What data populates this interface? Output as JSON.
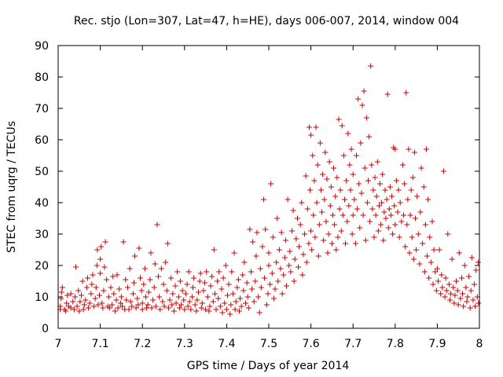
{
  "chart_data": {
    "type": "scatter",
    "title": "Rec. stjo (Lon=307, Lat=47, h=HE), days 006-007, 2014, window 004",
    "xlabel": "GPS time / Days of year 2014",
    "ylabel": "STEC from uqrg / TECUs",
    "xlim": [
      7,
      8
    ],
    "ylim": [
      0,
      90
    ],
    "xticks": [
      "7",
      "7.1",
      "7.2",
      "7.3",
      "7.4",
      "7.5",
      "7.6",
      "7.7",
      "7.8",
      "7.9",
      "8"
    ],
    "yticks": [
      "0",
      "10",
      "20",
      "30",
      "40",
      "50",
      "60",
      "70",
      "80",
      "90"
    ],
    "grid": false,
    "marker": "+",
    "color": "#cc0000",
    "points": [
      [
        7.005,
        6
      ],
      [
        7.005,
        7
      ],
      [
        7.007,
        9.5
      ],
      [
        7.008,
        11.5
      ],
      [
        7.01,
        13
      ],
      [
        7.015,
        6
      ],
      [
        7.018,
        5.5
      ],
      [
        7.02,
        8
      ],
      [
        7.022,
        10.5
      ],
      [
        7.025,
        7
      ],
      [
        7.03,
        6.5
      ],
      [
        7.03,
        11
      ],
      [
        7.035,
        8.5
      ],
      [
        7.038,
        6
      ],
      [
        7.04,
        10
      ],
      [
        7.042,
        19.5
      ],
      [
        7.045,
        7
      ],
      [
        7.048,
        12
      ],
      [
        7.05,
        5.5
      ],
      [
        7.052,
        8.5
      ],
      [
        7.055,
        10.5
      ],
      [
        7.058,
        15
      ],
      [
        7.06,
        6
      ],
      [
        7.062,
        7.5
      ],
      [
        7.065,
        9
      ],
      [
        7.068,
        13
      ],
      [
        7.07,
        16
      ],
      [
        7.072,
        6.5
      ],
      [
        7.075,
        8
      ],
      [
        7.078,
        11
      ],
      [
        7.08,
        14
      ],
      [
        7.082,
        17
      ],
      [
        7.085,
        7
      ],
      [
        7.088,
        9.5
      ],
      [
        7.09,
        13
      ],
      [
        7.092,
        20
      ],
      [
        7.093,
        25
      ],
      [
        7.095,
        7.5
      ],
      [
        7.098,
        10.5
      ],
      [
        7.1,
        17.5
      ],
      [
        7.1,
        22
      ],
      [
        7.102,
        26
      ],
      [
        7.104,
        8
      ],
      [
        7.106,
        6.5
      ],
      [
        7.108,
        12
      ],
      [
        7.11,
        19.5
      ],
      [
        7.112,
        27.5
      ],
      [
        7.115,
        15.5
      ],
      [
        7.118,
        7
      ],
      [
        7.12,
        10
      ],
      [
        7.122,
        6.5
      ],
      [
        7.125,
        13
      ],
      [
        7.128,
        7.5
      ],
      [
        7.13,
        16.5
      ],
      [
        7.132,
        11
      ],
      [
        7.135,
        5.5
      ],
      [
        7.138,
        9
      ],
      [
        7.14,
        17
      ],
      [
        7.142,
        6.5
      ],
      [
        7.145,
        12.5
      ],
      [
        7.148,
        8
      ],
      [
        7.15,
        10
      ],
      [
        7.152,
        7
      ],
      [
        7.155,
        27.5
      ],
      [
        7.158,
        6
      ],
      [
        7.16,
        15.5
      ],
      [
        7.162,
        9
      ],
      [
        7.165,
        13
      ],
      [
        7.168,
        6
      ],
      [
        7.17,
        19
      ],
      [
        7.172,
        8.5
      ],
      [
        7.175,
        7
      ],
      [
        7.178,
        11
      ],
      [
        7.18,
        14.5
      ],
      [
        7.182,
        23
      ],
      [
        7.185,
        6.5
      ],
      [
        7.188,
        9.5
      ],
      [
        7.19,
        7.5
      ],
      [
        7.192,
        25.5
      ],
      [
        7.195,
        16
      ],
      [
        7.198,
        12
      ],
      [
        7.2,
        6
      ],
      [
        7.2,
        8
      ],
      [
        7.203,
        14
      ],
      [
        7.206,
        19
      ],
      [
        7.208,
        10
      ],
      [
        7.21,
        6.5
      ],
      [
        7.213,
        7.5
      ],
      [
        7.215,
        11.5
      ],
      [
        7.218,
        15.5
      ],
      [
        7.22,
        24
      ],
      [
        7.222,
        6.5
      ],
      [
        7.225,
        9
      ],
      [
        7.228,
        13
      ],
      [
        7.23,
        20.5
      ],
      [
        7.232,
        7
      ],
      [
        7.235,
        33
      ],
      [
        7.238,
        16.5
      ],
      [
        7.24,
        10
      ],
      [
        7.242,
        6
      ],
      [
        7.245,
        19
      ],
      [
        7.248,
        8.5
      ],
      [
        7.25,
        14
      ],
      [
        7.252,
        7
      ],
      [
        7.255,
        21
      ],
      [
        7.258,
        12
      ],
      [
        7.26,
        27
      ],
      [
        7.262,
        6.5
      ],
      [
        7.265,
        9
      ],
      [
        7.268,
        16
      ],
      [
        7.27,
        7.5
      ],
      [
        7.272,
        11
      ],
      [
        7.275,
        5.5
      ],
      [
        7.278,
        13.5
      ],
      [
        7.28,
        8
      ],
      [
        7.283,
        18
      ],
      [
        7.286,
        10
      ],
      [
        7.288,
        6.5
      ],
      [
        7.29,
        15
      ],
      [
        7.292,
        7.5
      ],
      [
        7.295,
        12
      ],
      [
        7.298,
        9
      ],
      [
        7.3,
        6
      ],
      [
        7.303,
        11
      ],
      [
        7.306,
        14
      ],
      [
        7.308,
        7
      ],
      [
        7.31,
        18
      ],
      [
        7.312,
        8.5
      ],
      [
        7.315,
        6
      ],
      [
        7.318,
        10
      ],
      [
        7.32,
        13
      ],
      [
        7.322,
        16
      ],
      [
        7.325,
        7.5
      ],
      [
        7.328,
        5.5
      ],
      [
        7.33,
        9
      ],
      [
        7.333,
        11.5
      ],
      [
        7.336,
        15
      ],
      [
        7.338,
        17.5
      ],
      [
        7.34,
        6.5
      ],
      [
        7.342,
        8
      ],
      [
        7.345,
        12
      ],
      [
        7.348,
        14.5
      ],
      [
        7.35,
        6
      ],
      [
        7.352,
        18
      ],
      [
        7.355,
        10
      ],
      [
        7.358,
        5.5
      ],
      [
        7.36,
        7
      ],
      [
        7.362,
        13.5
      ],
      [
        7.365,
        16.5
      ],
      [
        7.368,
        8.5
      ],
      [
        7.37,
        25
      ],
      [
        7.372,
        11
      ],
      [
        7.375,
        6
      ],
      [
        7.378,
        15
      ],
      [
        7.38,
        9.5
      ],
      [
        7.382,
        18
      ],
      [
        7.385,
        7
      ],
      [
        7.388,
        12.5
      ],
      [
        7.39,
        5
      ],
      [
        7.392,
        16
      ],
      [
        7.395,
        8
      ],
      [
        7.398,
        20
      ],
      [
        7.4,
        6
      ],
      [
        7.402,
        10.5
      ],
      [
        7.405,
        14
      ],
      [
        7.408,
        4.5
      ],
      [
        7.41,
        7.5
      ],
      [
        7.412,
        18
      ],
      [
        7.415,
        11
      ],
      [
        7.418,
        24
      ],
      [
        7.42,
        6
      ],
      [
        7.422,
        8.5
      ],
      [
        7.425,
        13
      ],
      [
        7.428,
        15.5
      ],
      [
        7.43,
        5.5
      ],
      [
        7.432,
        9.5
      ],
      [
        7.435,
        7
      ],
      [
        7.438,
        17
      ],
      [
        7.44,
        12
      ],
      [
        7.442,
        21
      ],
      [
        7.445,
        8
      ],
      [
        7.448,
        14.5
      ],
      [
        7.45,
        10
      ],
      [
        7.452,
        6.5
      ],
      [
        7.455,
        31.5
      ],
      [
        7.458,
        18
      ],
      [
        7.46,
        12.5
      ],
      [
        7.462,
        27.5
      ],
      [
        7.465,
        8.5
      ],
      [
        7.468,
        15
      ],
      [
        7.47,
        23
      ],
      [
        7.472,
        30.5
      ],
      [
        7.475,
        10
      ],
      [
        7.478,
        5
      ],
      [
        7.48,
        19
      ],
      [
        7.482,
        13
      ],
      [
        7.485,
        26
      ],
      [
        7.488,
        41
      ],
      [
        7.49,
        16
      ],
      [
        7.492,
        31.5
      ],
      [
        7.495,
        7.5
      ],
      [
        7.498,
        11
      ],
      [
        7.5,
        20
      ],
      [
        7.5,
        24
      ],
      [
        7.503,
        14
      ],
      [
        7.505,
        46
      ],
      [
        7.508,
        17.5
      ],
      [
        7.51,
        29
      ],
      [
        7.512,
        9.5
      ],
      [
        7.515,
        12.5
      ],
      [
        7.518,
        21
      ],
      [
        7.52,
        35
      ],
      [
        7.522,
        15
      ],
      [
        7.525,
        25
      ],
      [
        7.528,
        19
      ],
      [
        7.53,
        30.5
      ],
      [
        7.532,
        11
      ],
      [
        7.535,
        17
      ],
      [
        7.538,
        22.5
      ],
      [
        7.54,
        28
      ],
      [
        7.542,
        13.5
      ],
      [
        7.545,
        41
      ],
      [
        7.548,
        20
      ],
      [
        7.55,
        24.5
      ],
      [
        7.552,
        18
      ],
      [
        7.555,
        31
      ],
      [
        7.558,
        37.5
      ],
      [
        7.56,
        15
      ],
      [
        7.562,
        22
      ],
      [
        7.565,
        28.5
      ],
      [
        7.568,
        35
      ],
      [
        7.57,
        19.5
      ],
      [
        7.572,
        26
      ],
      [
        7.575,
        33
      ],
      [
        7.578,
        40
      ],
      [
        7.58,
        17
      ],
      [
        7.582,
        23.5
      ],
      [
        7.585,
        30
      ],
      [
        7.588,
        48.5
      ],
      [
        7.59,
        21
      ],
      [
        7.592,
        38
      ],
      [
        7.595,
        27
      ],
      [
        7.596,
        64
      ],
      [
        7.598,
        44
      ],
      [
        7.6,
        61.5
      ],
      [
        7.6,
        31
      ],
      [
        7.602,
        25
      ],
      [
        7.604,
        55
      ],
      [
        7.606,
        36
      ],
      [
        7.608,
        47
      ],
      [
        7.61,
        29
      ],
      [
        7.612,
        64
      ],
      [
        7.614,
        40
      ],
      [
        7.616,
        52
      ],
      [
        7.618,
        23
      ],
      [
        7.62,
        33
      ],
      [
        7.622,
        59
      ],
      [
        7.624,
        44
      ],
      [
        7.626,
        37
      ],
      [
        7.628,
        49
      ],
      [
        7.63,
        28
      ],
      [
        7.632,
        41
      ],
      [
        7.634,
        56
      ],
      [
        7.636,
        34
      ],
      [
        7.638,
        47.5
      ],
      [
        7.64,
        24
      ],
      [
        7.642,
        30
      ],
      [
        7.644,
        53
      ],
      [
        7.646,
        39
      ],
      [
        7.648,
        45
      ],
      [
        7.65,
        27
      ],
      [
        7.652,
        36
      ],
      [
        7.654,
        51
      ],
      [
        7.656,
        33
      ],
      [
        7.658,
        42
      ],
      [
        7.66,
        25
      ],
      [
        7.662,
        48
      ],
      [
        7.664,
        29
      ],
      [
        7.666,
        66.5
      ],
      [
        7.668,
        38
      ],
      [
        7.67,
        44
      ],
      [
        7.672,
        31
      ],
      [
        7.674,
        64.5
      ],
      [
        7.676,
        36
      ],
      [
        7.678,
        55
      ],
      [
        7.68,
        41
      ],
      [
        7.682,
        27
      ],
      [
        7.684,
        47
      ],
      [
        7.686,
        34
      ],
      [
        7.688,
        62
      ],
      [
        7.69,
        39
      ],
      [
        7.692,
        52
      ],
      [
        7.694,
        44
      ],
      [
        7.696,
        57
      ],
      [
        7.698,
        30
      ],
      [
        7.7,
        36
      ],
      [
        7.7,
        49
      ],
      [
        7.703,
        41
      ],
      [
        7.706,
        27
      ],
      [
        7.708,
        55
      ],
      [
        7.71,
        38
      ],
      [
        7.712,
        73
      ],
      [
        7.714,
        46
      ],
      [
        7.716,
        32
      ],
      [
        7.718,
        59
      ],
      [
        7.72,
        43
      ],
      [
        7.722,
        71
      ],
      [
        7.724,
        36
      ],
      [
        7.726,
        75.5
      ],
      [
        7.728,
        51
      ],
      [
        7.73,
        28
      ],
      [
        7.732,
        67
      ],
      [
        7.734,
        40
      ],
      [
        7.736,
        47
      ],
      [
        7.738,
        61
      ],
      [
        7.74,
        34
      ],
      [
        7.742,
        83.5
      ],
      [
        7.744,
        52
      ],
      [
        7.746,
        38
      ],
      [
        7.748,
        44
      ],
      [
        7.75,
        29
      ],
      [
        7.752,
        48
      ],
      [
        7.754,
        36
      ],
      [
        7.756,
        42
      ],
      [
        7.758,
        53
      ],
      [
        7.76,
        31
      ],
      [
        7.762,
        39
      ],
      [
        7.764,
        46
      ],
      [
        7.766,
        33
      ],
      [
        7.768,
        40
      ],
      [
        7.77,
        49
      ],
      [
        7.772,
        28
      ],
      [
        7.774,
        37
      ],
      [
        7.776,
        44
      ],
      [
        7.778,
        35
      ],
      [
        7.78,
        41
      ],
      [
        7.782,
        74.5
      ],
      [
        7.784,
        32
      ],
      [
        7.786,
        38
      ],
      [
        7.788,
        45
      ],
      [
        7.79,
        36
      ],
      [
        7.792,
        42
      ],
      [
        7.794,
        30
      ],
      [
        7.796,
        57.5
      ],
      [
        7.798,
        39
      ],
      [
        7.8,
        33
      ],
      [
        7.8,
        57
      ],
      [
        7.803,
        47
      ],
      [
        7.806,
        37
      ],
      [
        7.808,
        44
      ],
      [
        7.81,
        29
      ],
      [
        7.812,
        40
      ],
      [
        7.815,
        34
      ],
      [
        7.818,
        52
      ],
      [
        7.82,
        36
      ],
      [
        7.822,
        46
      ],
      [
        7.824,
        26
      ],
      [
        7.826,
        75
      ],
      [
        7.828,
        33
      ],
      [
        7.83,
        41
      ],
      [
        7.832,
        57
      ],
      [
        7.834,
        24
      ],
      [
        7.836,
        36
      ],
      [
        7.838,
        44
      ],
      [
        7.84,
        29
      ],
      [
        7.842,
        48
      ],
      [
        7.844,
        22
      ],
      [
        7.846,
        56
      ],
      [
        7.848,
        35
      ],
      [
        7.85,
        25
      ],
      [
        7.852,
        42
      ],
      [
        7.855,
        30
      ],
      [
        7.858,
        20.5
      ],
      [
        7.86,
        37
      ],
      [
        7.862,
        51
      ],
      [
        7.865,
        27
      ],
      [
        7.868,
        45
      ],
      [
        7.87,
        18
      ],
      [
        7.872,
        33
      ],
      [
        7.874,
        57
      ],
      [
        7.876,
        23
      ],
      [
        7.878,
        41
      ],
      [
        7.88,
        16
      ],
      [
        7.882,
        29
      ],
      [
        7.885,
        21
      ],
      [
        7.888,
        34
      ],
      [
        7.89,
        14
      ],
      [
        7.892,
        25
      ],
      [
        7.895,
        18
      ],
      [
        7.898,
        12
      ],
      [
        7.9,
        19
      ],
      [
        7.902,
        15
      ],
      [
        7.905,
        25
      ],
      [
        7.908,
        11
      ],
      [
        7.91,
        17
      ],
      [
        7.912,
        13
      ],
      [
        7.915,
        50
      ],
      [
        7.918,
        10
      ],
      [
        7.92,
        16
      ],
      [
        7.922,
        12
      ],
      [
        7.925,
        30
      ],
      [
        7.928,
        14
      ],
      [
        7.93,
        9
      ],
      [
        7.932,
        11
      ],
      [
        7.935,
        22
      ],
      [
        7.938,
        13
      ],
      [
        7.94,
        8
      ],
      [
        7.942,
        10.5
      ],
      [
        7.945,
        15
      ],
      [
        7.948,
        12
      ],
      [
        7.95,
        7.5
      ],
      [
        7.952,
        24
      ],
      [
        7.955,
        9.5
      ],
      [
        7.958,
        16
      ],
      [
        7.96,
        11
      ],
      [
        7.962,
        7
      ],
      [
        7.965,
        20
      ],
      [
        7.968,
        13
      ],
      [
        7.97,
        8.5
      ],
      [
        7.972,
        10
      ],
      [
        7.975,
        16.5
      ],
      [
        7.978,
        6.5
      ],
      [
        7.98,
        12
      ],
      [
        7.982,
        22.5
      ],
      [
        7.985,
        9
      ],
      [
        7.988,
        14
      ],
      [
        7.99,
        7
      ],
      [
        7.992,
        18.5
      ],
      [
        7.995,
        10
      ],
      [
        7.997,
        21
      ],
      [
        7.998,
        8
      ]
    ]
  }
}
